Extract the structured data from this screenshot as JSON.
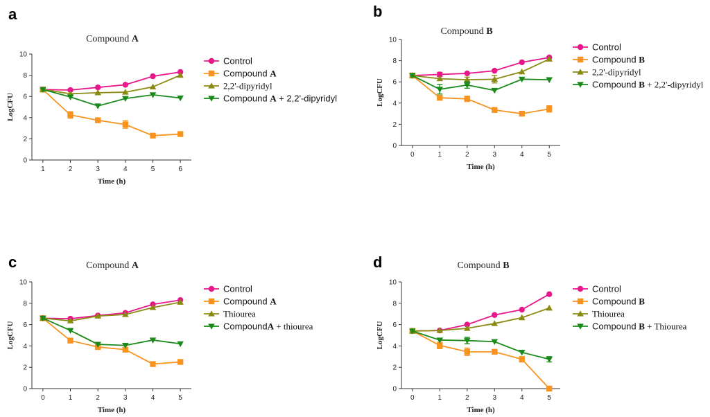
{
  "chart_data": [
    {
      "panel": "a",
      "type": "line",
      "title": "Compound ",
      "title_bold": "A",
      "xlabel": "Time (h)",
      "ylabel": "LogCFU",
      "x": [
        1,
        2,
        3,
        4,
        5,
        6
      ],
      "xticks": [
        1,
        2,
        3,
        4,
        5,
        6
      ],
      "xlim": [
        0.6,
        6.4
      ],
      "ylim": [
        0,
        10
      ],
      "yticks": [
        0,
        2,
        4,
        6,
        8,
        10
      ],
      "series": [
        {
          "name": "Control",
          "name_parts": [
            {
              "t": "Control"
            }
          ],
          "color": "#e8168a",
          "marker": "circle",
          "values": [
            6.65,
            6.6,
            6.85,
            7.1,
            7.9,
            8.3
          ],
          "errors": [
            0,
            0,
            0,
            0,
            0,
            0
          ]
        },
        {
          "name": "Compound A",
          "name_parts": [
            {
              "t": "Compound "
            },
            {
              "t": "A",
              "b": true,
              "s": true
            }
          ],
          "color": "#f7931e",
          "marker": "square",
          "values": [
            6.65,
            4.25,
            3.75,
            3.35,
            2.3,
            2.45
          ],
          "errors": [
            0,
            0.3,
            0,
            0.35,
            0,
            0
          ]
        },
        {
          "name": "2,2'-dipyridyl",
          "name_parts": [
            {
              "t": "2,2'-dipyridyl",
              "s": true
            }
          ],
          "color": "#8a8a10",
          "marker": "triangle-up",
          "values": [
            6.65,
            6.25,
            6.35,
            6.4,
            6.9,
            8.0
          ],
          "errors": [
            0,
            0,
            0,
            0,
            0,
            0
          ]
        },
        {
          "name": "Compound A + 2,2'-dipyridyl",
          "name_parts": [
            {
              "t": "Compound "
            },
            {
              "t": "A",
              "b": true,
              "s": true
            },
            {
              "t": " + 2,2'-dipyridyl"
            }
          ],
          "color": "#1a8a1a",
          "marker": "triangle-down",
          "values": [
            6.65,
            5.95,
            5.1,
            5.8,
            6.15,
            5.85
          ],
          "errors": [
            0,
            0,
            0,
            0,
            0,
            0
          ]
        }
      ]
    },
    {
      "panel": "b",
      "type": "line",
      "title": "Compound ",
      "title_bold": "B",
      "xlabel": "Time (h)",
      "ylabel": "LogCFU",
      "x": [
        0,
        1,
        2,
        3,
        4,
        5
      ],
      "xticks": [
        0,
        1,
        2,
        3,
        4,
        5
      ],
      "xlim": [
        -0.4,
        5.4
      ],
      "ylim": [
        0,
        10
      ],
      "yticks": [
        0,
        2,
        4,
        6,
        8,
        10
      ],
      "series": [
        {
          "name": "Control",
          "name_parts": [
            {
              "t": "Control"
            }
          ],
          "color": "#e8168a",
          "marker": "circle",
          "values": [
            6.6,
            6.7,
            6.8,
            7.05,
            7.85,
            8.3
          ],
          "errors": [
            0,
            0.2,
            0,
            0,
            0,
            0
          ]
        },
        {
          "name": "Compound B",
          "name_parts": [
            {
              "t": "Compound "
            },
            {
              "t": "B",
              "b": true,
              "s": true
            }
          ],
          "color": "#f7931e",
          "marker": "square",
          "values": [
            6.6,
            4.5,
            4.4,
            3.35,
            3.0,
            3.45
          ],
          "errors": [
            0,
            0,
            0.25,
            0,
            0,
            0.3
          ]
        },
        {
          "name": "2,2'-dipyridyl",
          "name_parts": [
            {
              "t": "2,2'-dipyridyl",
              "s": true
            }
          ],
          "color": "#8a8a10",
          "marker": "triangle-up",
          "values": [
            6.6,
            6.3,
            6.2,
            6.25,
            6.95,
            8.15
          ],
          "errors": [
            0,
            0,
            0.25,
            0.35,
            0,
            0
          ]
        },
        {
          "name": "Compound B + 2,2'-dipyridyl",
          "name_parts": [
            {
              "t": "Compound "
            },
            {
              "t": "B",
              "b": true,
              "s": true
            },
            {
              "t": " + 2,2'-dipyridyl",
              "s": true
            }
          ],
          "color": "#1a8a1a",
          "marker": "triangle-down",
          "values": [
            6.6,
            5.3,
            5.7,
            5.2,
            6.25,
            6.2
          ],
          "errors": [
            0,
            0.45,
            0.3,
            0,
            0,
            0
          ]
        }
      ]
    },
    {
      "panel": "c",
      "type": "line",
      "title": "Compound ",
      "title_bold": "A",
      "xlabel": "Time (h)",
      "ylabel": "LogCFU",
      "x": [
        0,
        1,
        2,
        3,
        4,
        5
      ],
      "xticks": [
        0,
        1,
        2,
        3,
        4,
        5
      ],
      "xlim": [
        -0.4,
        5.4
      ],
      "ylim": [
        0,
        10
      ],
      "yticks": [
        0,
        2,
        4,
        6,
        8,
        10
      ],
      "series": [
        {
          "name": "Control",
          "name_parts": [
            {
              "t": "Control"
            }
          ],
          "color": "#e8168a",
          "marker": "circle",
          "values": [
            6.6,
            6.55,
            6.85,
            7.1,
            7.9,
            8.3
          ],
          "errors": [
            0,
            0,
            0,
            0,
            0,
            0
          ]
        },
        {
          "name": "Compound A",
          "name_parts": [
            {
              "t": "Compound "
            },
            {
              "t": "A",
              "b": true,
              "s": true
            }
          ],
          "color": "#f7931e",
          "marker": "square",
          "values": [
            6.6,
            4.5,
            3.9,
            3.65,
            2.3,
            2.5
          ],
          "errors": [
            0,
            0,
            0,
            0,
            0,
            0
          ]
        },
        {
          "name": "Thiourea",
          "name_parts": [
            {
              "t": "Thiourea",
              "s": true
            }
          ],
          "color": "#8a8a10",
          "marker": "triangle-up",
          "values": [
            6.6,
            6.35,
            6.8,
            6.95,
            7.6,
            8.1
          ],
          "errors": [
            0,
            0,
            0,
            0,
            0,
            0
          ]
        },
        {
          "name": "CompoundA + thiourea",
          "name_parts": [
            {
              "t": "Compound"
            },
            {
              "t": "A",
              "b": true,
              "s": true
            },
            {
              "t": " + thiourea",
              "s": true
            }
          ],
          "color": "#1a8a1a",
          "marker": "triangle-down",
          "values": [
            6.6,
            5.45,
            4.15,
            4.05,
            4.55,
            4.2
          ],
          "errors": [
            0,
            0,
            0,
            0,
            0,
            0
          ]
        }
      ]
    },
    {
      "panel": "d",
      "type": "line",
      "title": "Compound ",
      "title_bold": "B",
      "xlabel": "Time (h)",
      "ylabel": "LogCFU",
      "x": [
        0,
        1,
        2,
        3,
        4,
        5
      ],
      "xticks": [
        0,
        1,
        2,
        3,
        4,
        5
      ],
      "xlim": [
        -0.4,
        5.4
      ],
      "ylim": [
        0,
        10
      ],
      "yticks": [
        0,
        2,
        4,
        6,
        8,
        10
      ],
      "series": [
        {
          "name": "Control",
          "name_parts": [
            {
              "t": "Control"
            }
          ],
          "color": "#e8168a",
          "marker": "circle",
          "values": [
            5.4,
            5.45,
            6.0,
            6.9,
            7.4,
            8.85
          ],
          "errors": [
            0,
            0,
            0,
            0,
            0,
            0
          ]
        },
        {
          "name": "Compound B",
          "name_parts": [
            {
              "t": "Compound "
            },
            {
              "t": "B",
              "b": true,
              "s": true
            }
          ],
          "color": "#f7931e",
          "marker": "square",
          "values": [
            5.4,
            4.05,
            3.45,
            3.45,
            2.75,
            0.0
          ],
          "errors": [
            0,
            0.3,
            0.35,
            0,
            0.25,
            0
          ]
        },
        {
          "name": "Thiourea",
          "name_parts": [
            {
              "t": "Thiourea",
              "s": true
            }
          ],
          "color": "#8a8a10",
          "marker": "triangle-up",
          "values": [
            5.4,
            5.45,
            5.65,
            6.1,
            6.65,
            7.55
          ],
          "errors": [
            0,
            0,
            0,
            0,
            0,
            0
          ]
        },
        {
          "name": "Compound B + Thiourea",
          "name_parts": [
            {
              "t": "Compound "
            },
            {
              "t": "B",
              "b": true,
              "s": true
            },
            {
              "t": " + Thiourea",
              "s": true
            }
          ],
          "color": "#1a8a1a",
          "marker": "triangle-down",
          "values": [
            5.4,
            4.55,
            4.5,
            4.4,
            3.4,
            2.75
          ],
          "errors": [
            0,
            0,
            0.3,
            0,
            0,
            0.25
          ]
        }
      ]
    }
  ]
}
